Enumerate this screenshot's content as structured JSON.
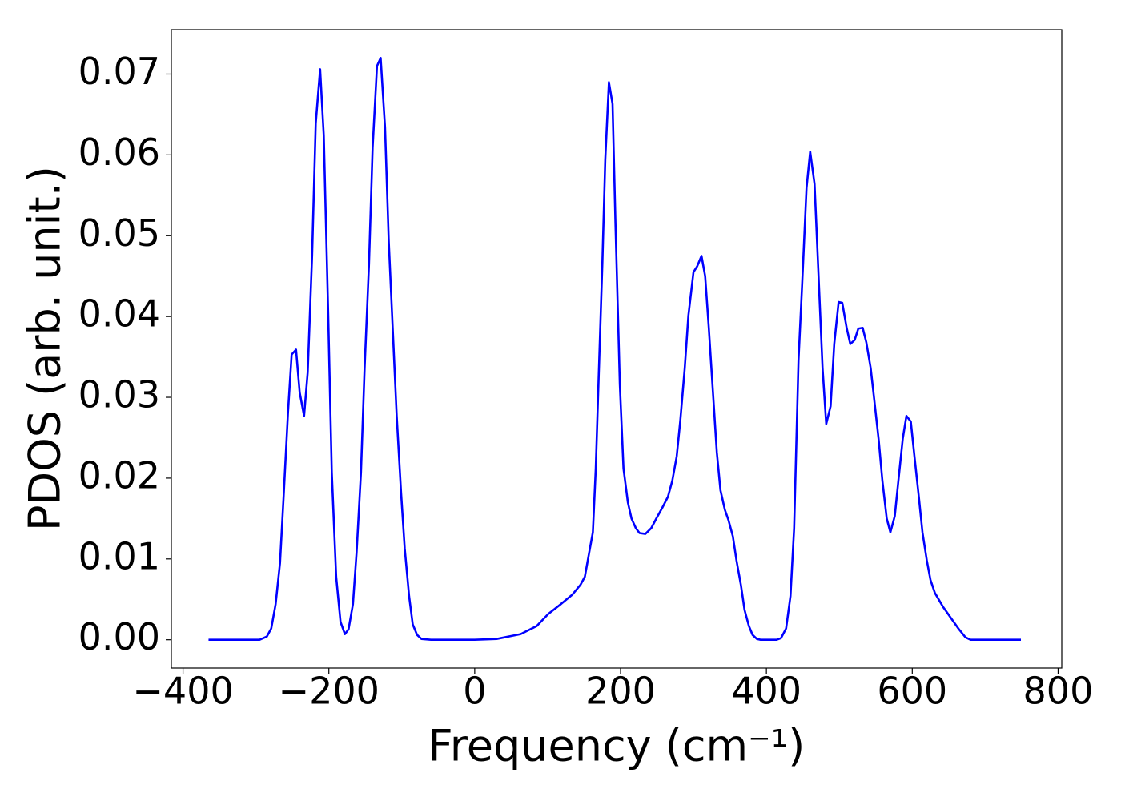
{
  "chart_data": {
    "type": "line",
    "xlabel": "Frequency (cm⁻¹)",
    "ylabel": "PDOS (arb. unit.)",
    "xlim": [
      -416,
      805
    ],
    "ylim": [
      -0.0035,
      0.0755
    ],
    "xticks": [
      {
        "value": -400,
        "label": "−400"
      },
      {
        "value": -200,
        "label": "−200"
      },
      0,
      200,
      400,
      600,
      800
    ],
    "yticks": [
      {
        "value": 0,
        "label": "0.00"
      },
      0.01,
      0.02,
      0.03,
      0.04,
      0.05,
      0.06,
      0.07
    ],
    "grid": false,
    "x": [
      -365,
      -295,
      -285,
      -279,
      -273,
      -267,
      -262,
      -256,
      -251,
      -245,
      -240,
      -234,
      -229,
      -223,
      -218,
      -212,
      -207,
      -201,
      -196,
      -190,
      -184,
      -178,
      -173,
      -167,
      -162,
      -156,
      -151,
      -145,
      -140,
      -134,
      -129,
      -123,
      -118,
      -112,
      -107,
      -101,
      -96,
      -90,
      -85,
      -79,
      -73,
      -60,
      0,
      30,
      63,
      85,
      101,
      118,
      134,
      145,
      151,
      156,
      162,
      166,
      170,
      175,
      179,
      184,
      189,
      193,
      199,
      204,
      210,
      215,
      221,
      226,
      234,
      242,
      249,
      257,
      265,
      271,
      277,
      282,
      288,
      293,
      300,
      305,
      311,
      316,
      321,
      326,
      332,
      337,
      343,
      348,
      354,
      359,
      365,
      370,
      376,
      381,
      387,
      392,
      414,
      420,
      427,
      433,
      438,
      444,
      449,
      455,
      460,
      466,
      471,
      477,
      482,
      488,
      493,
      499,
      504,
      510,
      515,
      521,
      526,
      532,
      537,
      543,
      548,
      554,
      559,
      565,
      570,
      576,
      581,
      587,
      592,
      598,
      603,
      609,
      614,
      620,
      625,
      631,
      642,
      653,
      664,
      673,
      680,
      749
    ],
    "series": [
      {
        "color": "#0000ff",
        "values": [
          0,
          0,
          0.0004,
          0.0014,
          0.0044,
          0.0095,
          0.0178,
          0.0282,
          0.0353,
          0.0359,
          0.0306,
          0.0277,
          0.0331,
          0.0475,
          0.0639,
          0.0706,
          0.0624,
          0.0406,
          0.0207,
          0.0078,
          0.0022,
          0.0007,
          0.0013,
          0.0044,
          0.0108,
          0.0207,
          0.0336,
          0.0465,
          0.0609,
          0.071,
          0.072,
          0.0634,
          0.0495,
          0.0376,
          0.0277,
          0.0182,
          0.0113,
          0.0054,
          0.0019,
          0.0006,
          0.0001,
          0,
          0,
          0.0001,
          0.0007,
          0.0017,
          0.0032,
          0.0044,
          0.0056,
          0.0068,
          0.0078,
          0.0103,
          0.0133,
          0.0212,
          0.0326,
          0.0465,
          0.0594,
          0.069,
          0.0663,
          0.0515,
          0.0316,
          0.0212,
          0.017,
          0.015,
          0.0138,
          0.0132,
          0.0131,
          0.0138,
          0.015,
          0.0163,
          0.0177,
          0.0197,
          0.0227,
          0.0272,
          0.0336,
          0.0401,
          0.0455,
          0.0462,
          0.0475,
          0.045,
          0.0386,
          0.0316,
          0.0232,
          0.0185,
          0.0161,
          0.0148,
          0.0128,
          0.0098,
          0.0068,
          0.0037,
          0.0017,
          0.0006,
          0.0001,
          0,
          0,
          0.0002,
          0.0014,
          0.0054,
          0.0138,
          0.0346,
          0.044,
          0.0559,
          0.0604,
          0.0564,
          0.046,
          0.0336,
          0.0267,
          0.0289,
          0.0366,
          0.0418,
          0.0417,
          0.0386,
          0.0366,
          0.0371,
          0.0385,
          0.0386,
          0.0368,
          0.0336,
          0.0296,
          0.0247,
          0.0197,
          0.015,
          0.0133,
          0.0153,
          0.0197,
          0.0249,
          0.0277,
          0.027,
          0.0227,
          0.0177,
          0.0133,
          0.0098,
          0.0074,
          0.0058,
          0.0041,
          0.0027,
          0.0013,
          0.0003,
          0,
          0
        ]
      }
    ]
  }
}
